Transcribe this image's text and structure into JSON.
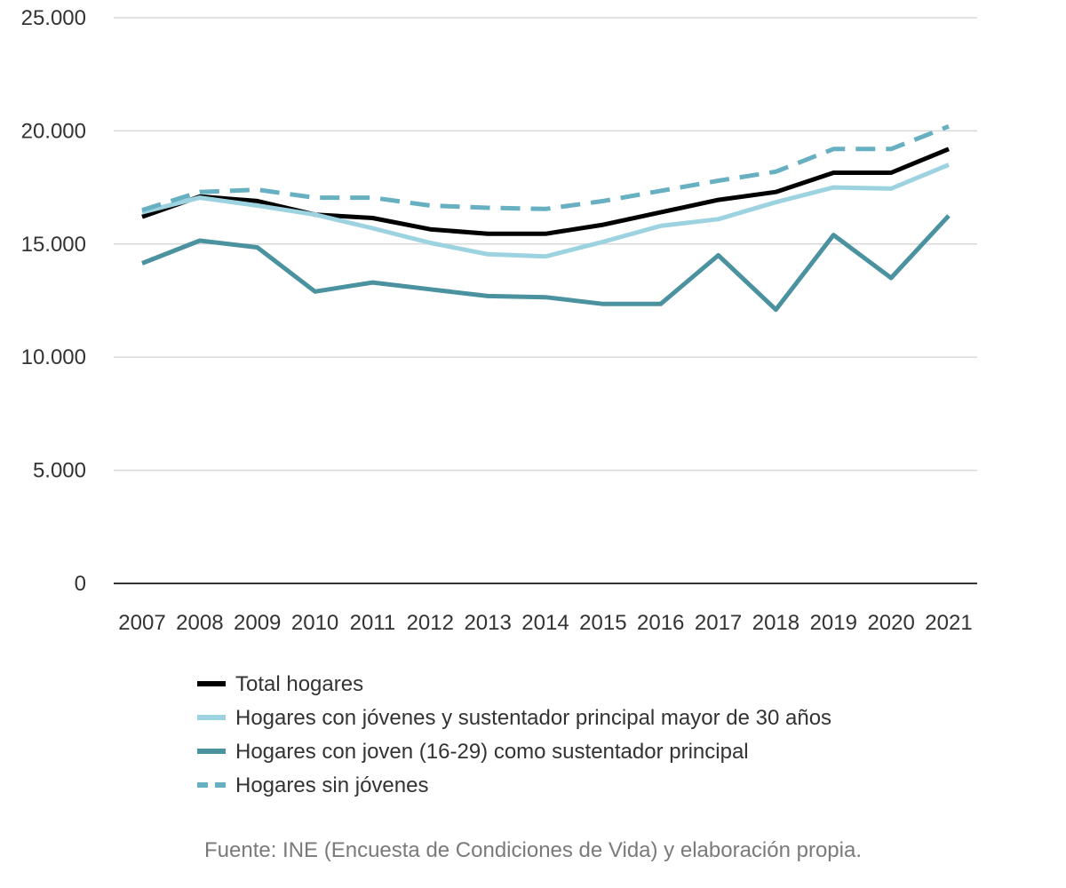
{
  "chart_data": {
    "type": "line",
    "title": "",
    "xlabel": "",
    "ylabel": "",
    "ylim": [
      0,
      25000
    ],
    "y_ticks": [
      {
        "value": 0,
        "label": "0"
      },
      {
        "value": 5000,
        "label": "5.000"
      },
      {
        "value": 10000,
        "label": "10.000"
      },
      {
        "value": 15000,
        "label": "15.000"
      },
      {
        "value": 20000,
        "label": "20.000"
      },
      {
        "value": 25000,
        "label": "25.000"
      }
    ],
    "grid": true,
    "categories": [
      "2007",
      "2008",
      "2009",
      "2010",
      "2011",
      "2012",
      "2013",
      "2014",
      "2015",
      "2016",
      "2017",
      "2018",
      "2019",
      "2020",
      "2021"
    ],
    "series": [
      {
        "name": "Total hogares",
        "color": "#000000",
        "dash": "solid",
        "values": [
          16200,
          17100,
          16900,
          16300,
          16150,
          15650,
          15450,
          15450,
          15850,
          16400,
          16950,
          17300,
          18150,
          18150,
          19200
        ]
      },
      {
        "name": "Hogares con jóvenes y sustentador principal mayor de 30 años",
        "color": "#9dd3e0",
        "dash": "solid",
        "values": [
          16400,
          17050,
          16700,
          16300,
          15700,
          15050,
          14550,
          14450,
          15100,
          15800,
          16100,
          16850,
          17500,
          17450,
          18500
        ]
      },
      {
        "name": "Hogares con joven (16-29) como sustentador principal",
        "color": "#4a929f",
        "dash": "solid",
        "values": [
          14150,
          15150,
          14850,
          12900,
          13300,
          13000,
          12700,
          12650,
          12350,
          12350,
          14500,
          12100,
          15400,
          13500,
          16250
        ]
      },
      {
        "name": "Hogares sin jóvenes",
        "color": "#67b0c1",
        "dash": "dashed",
        "values": [
          16500,
          17300,
          17400,
          17050,
          17050,
          16700,
          16600,
          16550,
          16900,
          17350,
          17800,
          18200,
          19200,
          19200,
          20200
        ]
      }
    ]
  },
  "source": "Fuente: INE (Encuesta de Condiciones de Vida) y elaboración propia."
}
